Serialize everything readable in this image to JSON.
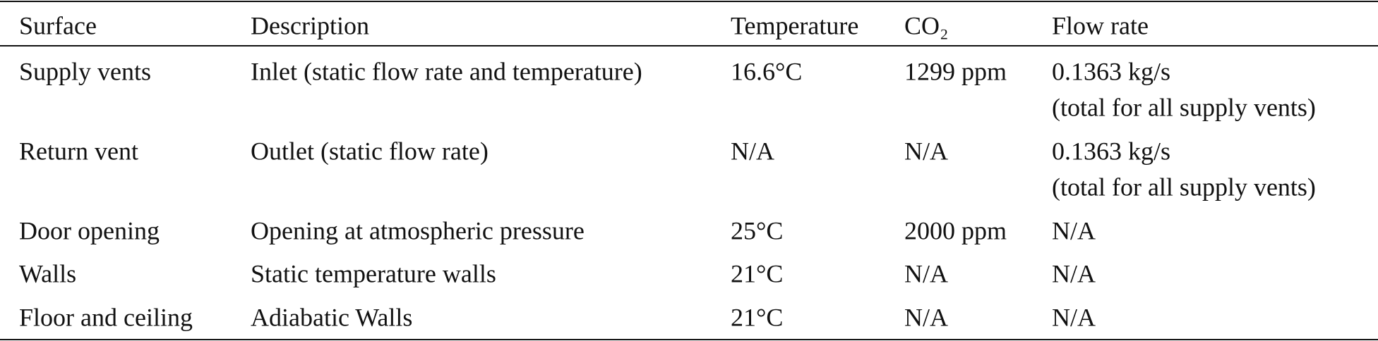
{
  "table": {
    "header": [
      "Surface",
      "Description",
      "Temperature",
      "CO₂",
      "Flow rate"
    ],
    "rows": [
      [
        "Supply vents",
        "Inlet (static flow rate and temperature)",
        "16.6°C",
        "1299 ppm",
        [
          "0.1363 kg/s",
          "(total for all supply vents)"
        ]
      ],
      [
        "Return vent",
        "Outlet (static flow rate)",
        "N/A",
        "N/A",
        [
          "0.1363 kg/s",
          "(total for all supply vents)"
        ]
      ],
      [
        "Door opening",
        "Opening at atmospheric pressure",
        "25°C",
        "2000 ppm",
        "N/A"
      ],
      [
        "Walls",
        "Static temperature walls",
        "21°C",
        "N/A",
        "N/A"
      ],
      [
        "Floor and ceiling",
        "Adiabatic Walls",
        "21°C",
        "N/A",
        "N/A"
      ]
    ]
  }
}
